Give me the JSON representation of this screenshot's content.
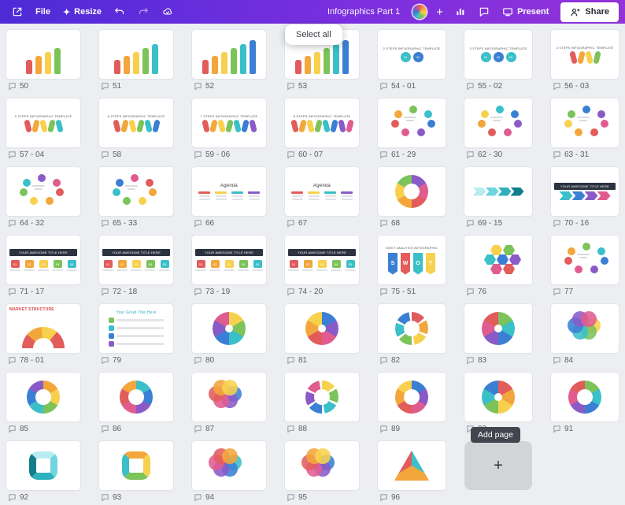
{
  "header": {
    "file_label": "File",
    "resize_label": "Resize",
    "title": "Infographics Part 1",
    "present_label": "Present",
    "share_label": "Share",
    "plus_label": "+"
  },
  "tooltips": {
    "select_all": "Select all",
    "add_page": "Add page"
  },
  "add_tile": {
    "plus": "+"
  },
  "palette": {
    "colors": [
      "#e25c5c",
      "#f2a63b",
      "#f7d14e",
      "#7cc35a",
      "#3bbfc9",
      "#3b7fd4",
      "#8a5bc7",
      "#e05c8f"
    ],
    "teal": [
      "#b8ecf1",
      "#6fd5de",
      "#2fb0bd",
      "#127e8c"
    ],
    "swot": [
      "#3b7fd4",
      "#e25c5c",
      "#3bbfc9",
      "#f7d14e"
    ],
    "topbar_gradient": [
      "#4c2bd6",
      "#9233d8"
    ],
    "background": "#eceef1"
  },
  "pages": [
    {
      "label": "50",
      "type": "bars",
      "n": 4
    },
    {
      "label": "51",
      "type": "bars",
      "n": 5
    },
    {
      "label": "52",
      "type": "bars",
      "n": 6
    },
    {
      "label": "53",
      "type": "bars",
      "n": 6
    },
    {
      "label": "54 - 01",
      "type": "steps",
      "n": 2,
      "title": "2 STEPS INFOGRAPHIC TEMPLATE"
    },
    {
      "label": "55 - 02",
      "type": "steps",
      "n": 3,
      "title": "3 STEPS INFOGRAPHIC TEMPLATE"
    },
    {
      "label": "56 - 03",
      "type": "pins",
      "n": 4,
      "title": "4 STEPS INFOGRAPHIC TEMPLATE"
    },
    {
      "label": "57 - 04",
      "type": "pins",
      "n": 5,
      "title": "5 STEPS INFOGRAPHIC TEMPLATE"
    },
    {
      "label": "58",
      "type": "pins",
      "n": 6,
      "title": "6 STEPS INFOGRAPHIC TEMPLATE"
    },
    {
      "label": "59 - 06",
      "type": "pins",
      "n": 7,
      "title": "7 STEPS INFOGRAPHIC TEMPLATE"
    },
    {
      "label": "60 - 07",
      "type": "pins",
      "n": 8,
      "title": "8 STEPS INFOGRAPHIC TEMPLATE"
    },
    {
      "label": "61 - 29",
      "type": "cycle"
    },
    {
      "label": "62 - 30",
      "type": "cycle"
    },
    {
      "label": "63 - 31",
      "type": "cycle"
    },
    {
      "label": "64 - 32",
      "type": "cycle"
    },
    {
      "label": "65 - 33",
      "type": "cycle"
    },
    {
      "label": "66",
      "type": "agenda",
      "title": "Agenda"
    },
    {
      "label": "67",
      "type": "agenda",
      "title": "Agenda"
    },
    {
      "label": "68",
      "type": "donut"
    },
    {
      "label": "69 - 15",
      "type": "arrows",
      "scheme": "teal"
    },
    {
      "label": "70 - 16",
      "type": "arrows",
      "title": "YOUR AWESOME TITLE HERE"
    },
    {
      "label": "71 - 17",
      "type": "timeline",
      "title": "YOUR AWESOME TITLE HERE"
    },
    {
      "label": "72 - 18",
      "type": "timeline",
      "title": "YOUR AWESOME TITLE HERE"
    },
    {
      "label": "73 - 19",
      "type": "timeline",
      "title": "YOUR AWESOME TITLE HERE"
    },
    {
      "label": "74 - 20",
      "type": "timeline",
      "title": "YOUR AWESOME TITLE HERE"
    },
    {
      "label": "75 - 51",
      "type": "swot",
      "title": "SWOT ANALYSIS INFOGRAPHIC",
      "letters": [
        "S",
        "W",
        "O",
        "T"
      ]
    },
    {
      "label": "76",
      "type": "hex"
    },
    {
      "label": "77",
      "type": "cycle"
    },
    {
      "label": "78 - 01",
      "type": "semicircle",
      "title": "MARKET STRUCTURE"
    },
    {
      "label": "79",
      "type": "list",
      "title": "Your Great Title Here"
    },
    {
      "label": "80",
      "type": "pie"
    },
    {
      "label": "81",
      "type": "pie"
    },
    {
      "label": "82",
      "type": "pinwheel"
    },
    {
      "label": "83",
      "type": "pie"
    },
    {
      "label": "84",
      "type": "flower"
    },
    {
      "label": "85",
      "type": "donut"
    },
    {
      "label": "86",
      "type": "donut"
    },
    {
      "label": "87",
      "type": "flower"
    },
    {
      "label": "88",
      "type": "pinwheel"
    },
    {
      "label": "89",
      "type": "donut"
    },
    {
      "label": "90",
      "type": "pie"
    },
    {
      "label": "91",
      "type": "donut"
    },
    {
      "label": "92",
      "type": "loop",
      "scheme": "teal"
    },
    {
      "label": "93",
      "type": "loop"
    },
    {
      "label": "94",
      "type": "flower"
    },
    {
      "label": "95",
      "type": "flower"
    },
    {
      "label": "96",
      "type": "triangle"
    }
  ]
}
